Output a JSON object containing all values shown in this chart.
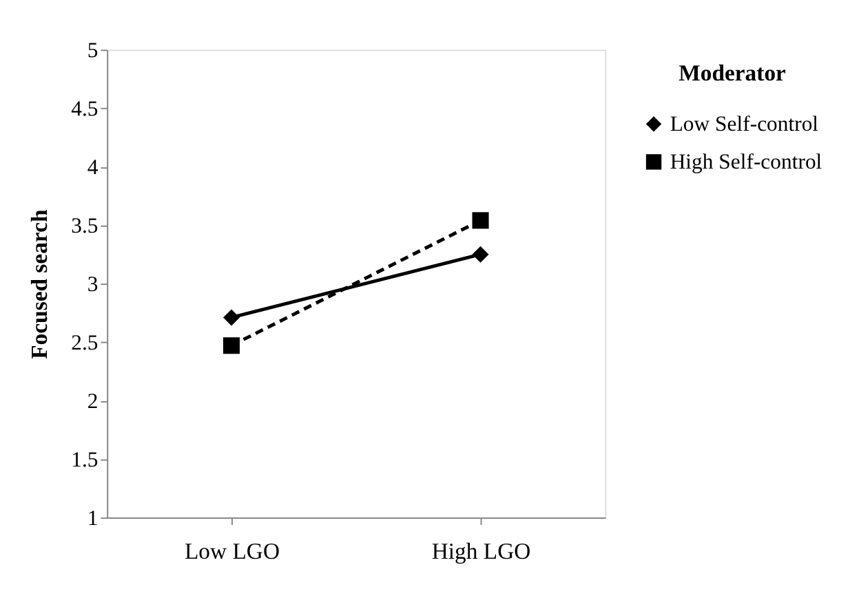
{
  "chart_data": {
    "type": "line",
    "ylabel": "Focused search",
    "legend_title": "Moderator",
    "legend": "top right",
    "grid": false,
    "categories": [
      "Low LGO",
      "High LGO"
    ],
    "ylim": [
      1,
      5
    ],
    "yticks": [
      1,
      1.5,
      2,
      2.5,
      3,
      3.5,
      4,
      4.5,
      5
    ],
    "series": [
      {
        "name": "Low Self-control",
        "color": "#000000",
        "marker": "diamond",
        "line_style": "solid",
        "values": [
          2.71,
          3.25
        ]
      },
      {
        "name": "High Self-control",
        "color": "#000000",
        "marker": "square",
        "line_style": "dashed",
        "values": [
          2.47,
          3.54
        ]
      }
    ]
  }
}
